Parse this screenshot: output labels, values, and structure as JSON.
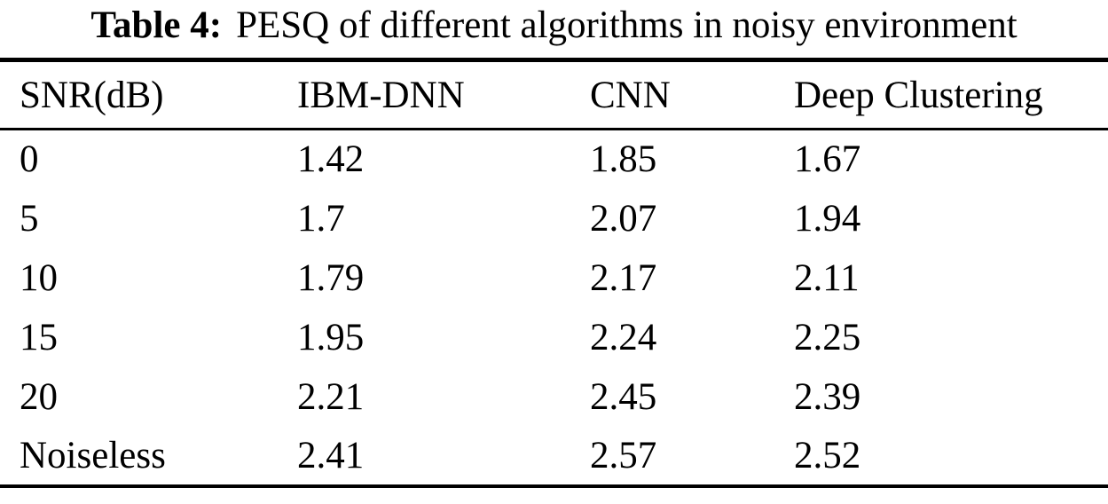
{
  "caption": {
    "label": "Table 4:",
    "text": "PESQ of different algorithms in noisy environment"
  },
  "table": {
    "columns": [
      "SNR(dB)",
      "IBM-DNN",
      "CNN",
      "Deep Clustering"
    ],
    "rows": [
      [
        "0",
        "1.42",
        "1.85",
        "1.67"
      ],
      [
        "5",
        "1.7",
        "2.07",
        "1.94"
      ],
      [
        "10",
        "1.79",
        "2.17",
        "2.11"
      ],
      [
        "15",
        "1.95",
        "2.24",
        "2.25"
      ],
      [
        "20",
        "2.21",
        "2.45",
        "2.39"
      ],
      [
        "Noiseless",
        "2.41",
        "2.57",
        "2.52"
      ]
    ]
  },
  "chart_data": {
    "type": "table",
    "title": "Table 4: PESQ of different algorithms in noisy environment",
    "categories": [
      "0",
      "5",
      "10",
      "15",
      "20",
      "Noiseless"
    ],
    "series": [
      {
        "name": "IBM-DNN",
        "values": [
          1.42,
          1.7,
          1.79,
          1.95,
          2.21,
          2.41
        ]
      },
      {
        "name": "CNN",
        "values": [
          1.85,
          2.07,
          2.17,
          2.24,
          2.45,
          2.57
        ]
      },
      {
        "name": "Deep Clustering",
        "values": [
          1.67,
          1.94,
          2.11,
          2.25,
          2.39,
          2.52
        ]
      }
    ],
    "xlabel": "SNR(dB)",
    "ylabel": "PESQ"
  },
  "colors": {
    "background": "#ffffff",
    "text": "#000000",
    "rule": "#000000"
  }
}
